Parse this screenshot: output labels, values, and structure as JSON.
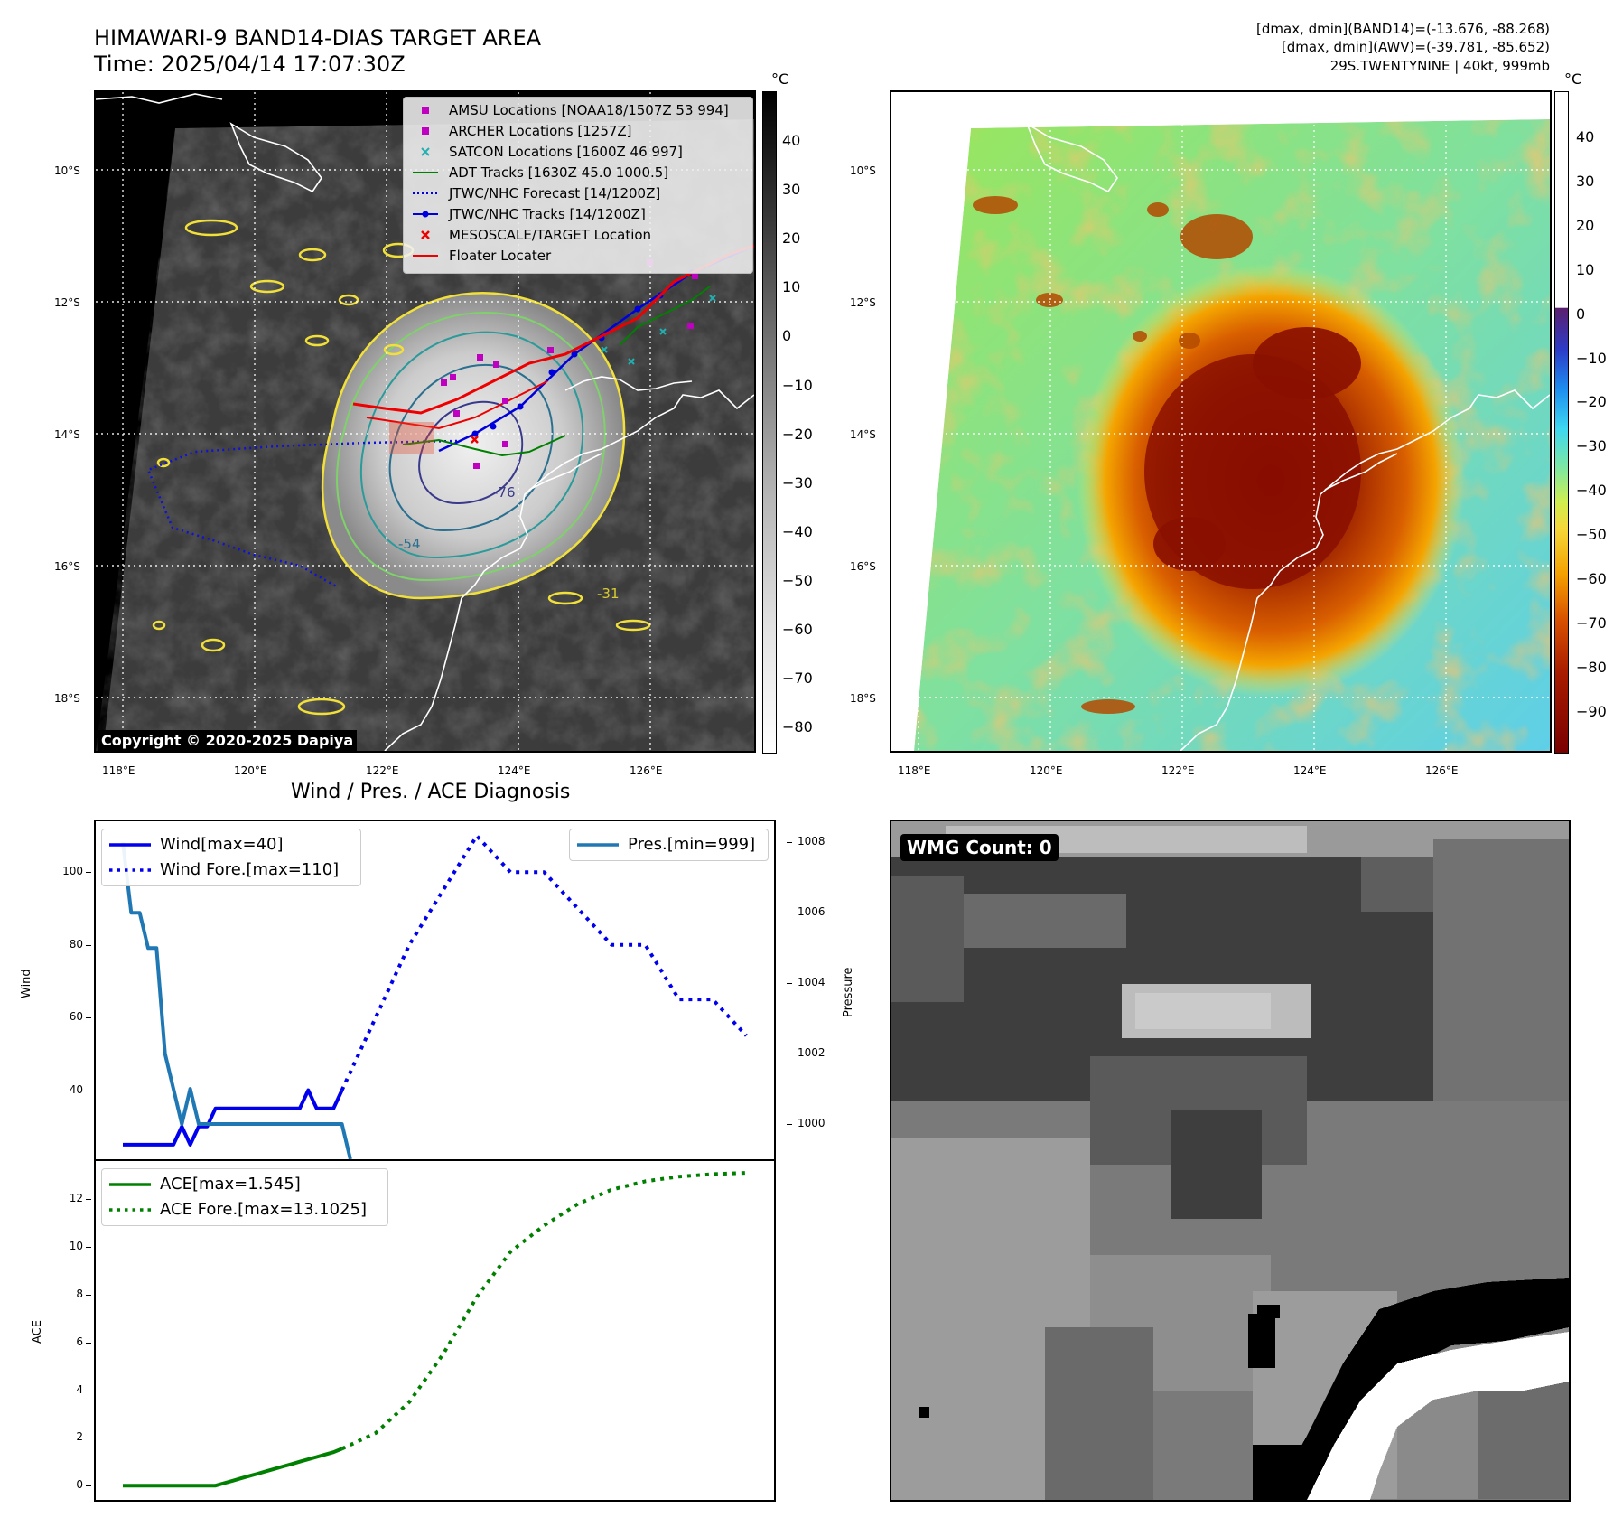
{
  "header": {
    "title_line1": "HIMAWARI-9 BAND14-DIAS TARGET AREA",
    "title_line2": "Time: 2025/04/14 17:07:30Z",
    "info_line1": "[dmax, dmin](BAND14)=(-13.676, -88.268)",
    "info_line2": "[dmax, dmin](AWV)=(-39.781, -85.652)",
    "info_line3": "29S.TWENTYNINE | 40kt, 999mb"
  },
  "map": {
    "lat_labels": [
      "10°S",
      "12°S",
      "14°S",
      "16°S",
      "18°S"
    ],
    "lon_labels": [
      "118°E",
      "120°E",
      "122°E",
      "124°E",
      "126°E"
    ],
    "copyright": "Copyright © 2020-2025 Dapiya",
    "contour_labels": [
      "-76",
      "-31",
      "-54"
    ],
    "legend": [
      {
        "label": "AMSU Locations [NOAA18/1507Z 53 994]",
        "marker": "square",
        "color": "#c000c0"
      },
      {
        "label": "ARCHER Locations [1257Z]",
        "marker": "square",
        "color": "#c000c0"
      },
      {
        "label": "SATCON Locations [1600Z 46 997]",
        "marker": "x",
        "color": "#20b0b0"
      },
      {
        "label": "ADT Tracks [1630Z 45.0 1000.5]",
        "marker": "line",
        "color": "#008000"
      },
      {
        "label": "JTWC/NHC Forecast [14/1200Z]",
        "marker": "dotted",
        "color": "#0000dd"
      },
      {
        "label": "JTWC/NHC Tracks [14/1200Z]",
        "marker": "line-dot",
        "color": "#0000dd"
      },
      {
        "label": "MESOSCALE/TARGET Location",
        "marker": "redx",
        "color": "#ee0000"
      },
      {
        "label": "Floater Locater",
        "marker": "line",
        "color": "#ee0000"
      }
    ]
  },
  "colorbar_gray": {
    "unit": "°C",
    "ticks": [
      "40",
      "30",
      "20",
      "10",
      "0",
      "−10",
      "−20",
      "−30",
      "−40",
      "−50",
      "−60",
      "−70",
      "−80"
    ]
  },
  "colorbar_color": {
    "unit": "°C",
    "ticks": [
      "40",
      "30",
      "20",
      "10",
      "0",
      "−10",
      "−20",
      "−30",
      "−40",
      "−50",
      "−60",
      "−70",
      "−80",
      "−90"
    ]
  },
  "wmg": {
    "label": "WMG Count: 0"
  },
  "chart_data": [
    {
      "type": "line",
      "title": "Wind / Pres. / ACE Diagnosis",
      "ylabel": "Wind",
      "y2label": "Pressure",
      "ylim": [
        21,
        114
      ],
      "y2lim": [
        999.0,
        1008.6
      ],
      "yticks": [
        40,
        60,
        80,
        100
      ],
      "y2ticks": [
        1000,
        1002,
        1004,
        1006,
        1008
      ],
      "legend_left": [
        "Wind[max=40]",
        "Wind Fore.[max=110]"
      ],
      "legend_right": [
        "Pres.[min=999]"
      ],
      "series": [
        {
          "name": "Wind[max=40]",
          "style": "solid",
          "color": "#0000ee",
          "x": [
            0,
            1,
            2,
            3,
            4,
            5,
            6,
            7,
            8,
            9,
            10,
            11,
            12,
            13,
            14,
            15,
            16,
            17,
            18,
            19,
            20,
            21,
            22,
            23,
            24,
            25,
            26
          ],
          "values": [
            25,
            25,
            25,
            25,
            25,
            25,
            25,
            30,
            25,
            30,
            30,
            35,
            35,
            35,
            35,
            35,
            35,
            35,
            35,
            35,
            35,
            35,
            40,
            35,
            35,
            35,
            40
          ]
        },
        {
          "name": "Wind Fore.[max=110]",
          "style": "dotted",
          "color": "#0000ee",
          "x": [
            26,
            30,
            34,
            38,
            42,
            46,
            50,
            54,
            58,
            62,
            66,
            70,
            74
          ],
          "values": [
            40,
            60,
            80,
            95,
            110,
            100,
            100,
            90,
            80,
            80,
            65,
            65,
            55
          ]
        },
        {
          "name": "Pres.[min=999]",
          "style": "solid",
          "color": "#1f77b4",
          "axis": "right",
          "x": [
            0,
            1,
            2,
            3,
            4,
            5,
            6,
            7,
            8,
            9,
            10,
            11,
            12,
            13,
            14,
            15,
            16,
            17,
            18,
            19,
            20,
            21,
            22,
            23,
            24,
            25,
            26,
            27
          ],
          "values": [
            1008,
            1006,
            1006,
            1005,
            1005,
            1002,
            1001,
            1000,
            1001,
            1000,
            1000,
            1000,
            1000,
            1000,
            1000,
            1000,
            1000,
            1000,
            1000,
            1000,
            1000,
            1000,
            1000,
            1000,
            1000,
            1000,
            1000,
            999
          ]
        }
      ]
    },
    {
      "type": "line",
      "ylabel": "ACE",
      "ylim": [
        -0.6,
        13.6
      ],
      "yticks": [
        0,
        2,
        4,
        6,
        8,
        10,
        12
      ],
      "legend": [
        "ACE[max=1.545]",
        "ACE Fore.[max=13.1025]"
      ],
      "series": [
        {
          "name": "ACE[max=1.545]",
          "style": "solid",
          "color": "#008000",
          "x": [
            0,
            2,
            4,
            6,
            8,
            10,
            11,
            12,
            13,
            14,
            15,
            16,
            17,
            18,
            19,
            20,
            21,
            22,
            23,
            24,
            25,
            26
          ],
          "values": [
            0,
            0,
            0,
            0,
            0,
            0,
            0,
            0.1,
            0.2,
            0.3,
            0.4,
            0.5,
            0.6,
            0.7,
            0.8,
            0.9,
            1.0,
            1.1,
            1.2,
            1.3,
            1.4,
            1.545
          ]
        },
        {
          "name": "ACE Fore.[max=13.1025]",
          "style": "dotted",
          "color": "#008000",
          "x": [
            26,
            30,
            34,
            38,
            42,
            46,
            50,
            54,
            58,
            62,
            66,
            70,
            74
          ],
          "values": [
            1.545,
            2.2,
            3.5,
            5.5,
            7.9,
            9.8,
            10.9,
            11.8,
            12.4,
            12.75,
            12.95,
            13.05,
            13.1025
          ]
        }
      ]
    }
  ]
}
